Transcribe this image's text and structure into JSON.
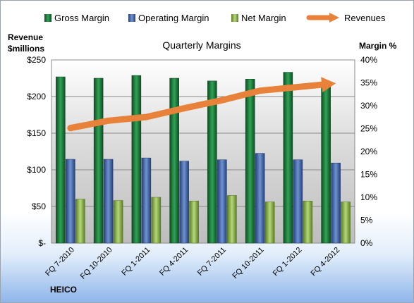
{
  "chart_data": {
    "type": "bar",
    "title": "Quarterly Margins",
    "left_axis_title_line1": "Revenue",
    "left_axis_title_line2": "$millions",
    "right_axis_title": "Margin %",
    "categories": [
      "FQ 7-2010",
      "FQ 10-2010",
      "FQ 1-2011",
      "FQ 4-2011",
      "FQ 7-2011",
      "FQ 10-2011",
      "FQ 1-2012",
      "FQ 4-2012"
    ],
    "left_ticks": [
      "$-",
      "$50",
      "$100",
      "$150",
      "$200",
      "$250"
    ],
    "right_ticks": [
      "0%",
      "5%",
      "10%",
      "15%",
      "20%",
      "25%",
      "30%",
      "35%",
      "40%"
    ],
    "ylim_left": [
      0,
      250
    ],
    "ylim_right": [
      0,
      40
    ],
    "series": [
      {
        "name": "Gross Margin",
        "axis": "right",
        "color": "#1e7b3c",
        "values": [
          36.3,
          36.0,
          36.6,
          36.0,
          35.4,
          35.8,
          37.3,
          34.8
        ]
      },
      {
        "name": "Operating Margin",
        "axis": "right",
        "color": "#3e62a5",
        "values": [
          18.3,
          18.3,
          18.6,
          17.9,
          18.2,
          19.6,
          18.2,
          17.5
        ]
      },
      {
        "name": "Net Margin",
        "axis": "right",
        "color": "#8db64a",
        "values": [
          9.6,
          9.3,
          10.0,
          9.2,
          10.4,
          9.0,
          9.2,
          9.0
        ]
      },
      {
        "name": "Revenues",
        "axis": "left",
        "type": "line",
        "color": "#e8823a",
        "values": [
          157,
          167,
          172,
          184,
          195,
          208,
          213,
          218
        ]
      }
    ],
    "legend_position": "top",
    "grid": true,
    "footer_label": "HEICO"
  }
}
